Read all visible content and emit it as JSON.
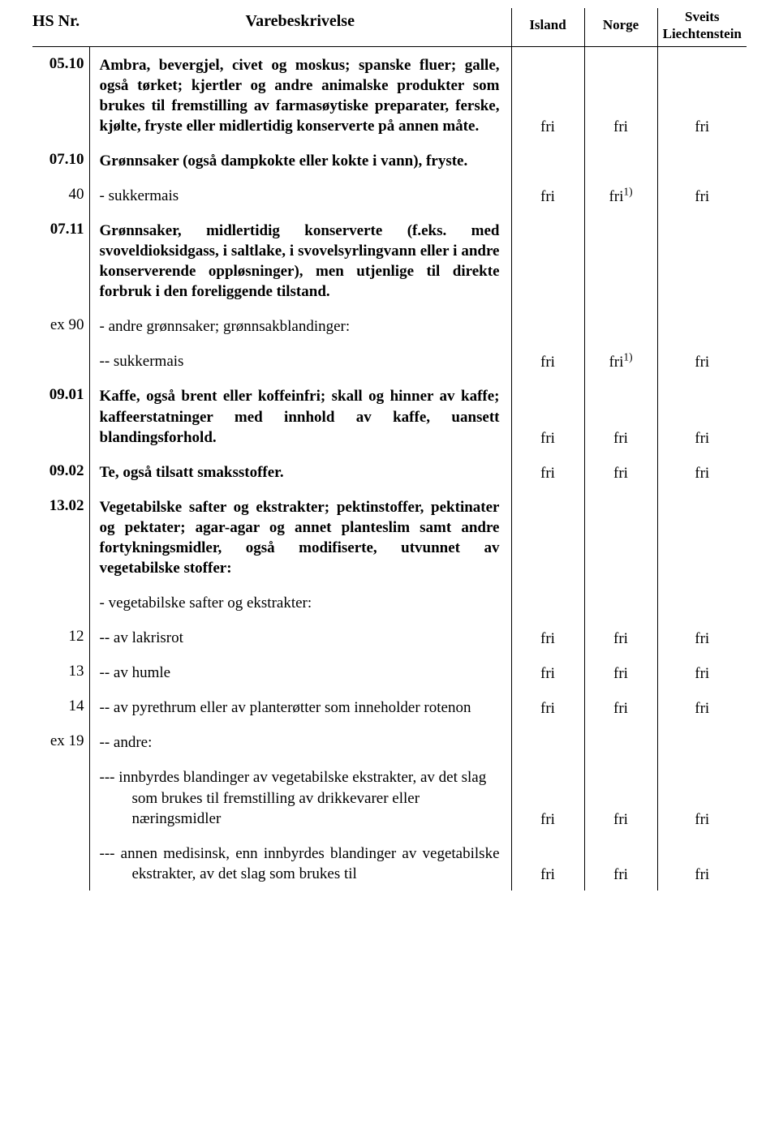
{
  "header": {
    "hs": "HS Nr.",
    "desc": "Varebeskrivelse",
    "iceland": "Island",
    "norway": "Norge",
    "swiss_line1": "Sveits",
    "swiss_line2": "Liechtenstein"
  },
  "free": "fri",
  "free_sup": "1)",
  "rows": {
    "r0510": {
      "hs": "05.10",
      "desc": "Ambra, bevergjel, civet og moskus; spanske fluer; galle, også tørket; kjertler og andre animalske produkter som brukes til fremstilling av farmasøytiske preparater, ferske, kjølte, fryste eller midlertidig konserverte på annen måte."
    },
    "r0710": {
      "hs": "07.10",
      "desc": "Grønnsaker (også dampkokte eller kokte i vann), fryste."
    },
    "r40": {
      "hs": "40",
      "desc": "- sukkermais"
    },
    "r0711": {
      "hs": "07.11",
      "desc": "Grønnsaker, midlertidig konserverte (f.eks. med svoveldioksidgass, i saltlake, i svovelsyrlingvann eller i andre konserverende oppløsninger), men utjenlige til direkte forbruk i den foreliggende tilstand."
    },
    "rex90": {
      "hs": "ex 90",
      "desc": "- andre grønnsaker; grønnsakblandinger:"
    },
    "rsuk2": {
      "desc": "-- sukkermais"
    },
    "r0901": {
      "hs": "09.01",
      "desc": "Kaffe, også brent eller koffeinfri; skall og hinner av kaffe; kaffeerstatninger med innhold av kaffe, uansett blandingsforhold."
    },
    "r0902": {
      "hs": "09.02",
      "desc": "Te, også tilsatt smaksstoffer."
    },
    "r1302": {
      "hs": "13.02",
      "desc": "Vegetabilske safter og ekstrakter; pektinstoffer, pektinater og pektater; agar-agar og annet planteslim samt andre fortykningsmidler, også modifiserte, utvunnet av vegetabilske stoffer:"
    },
    "rveg": {
      "desc": "- vegetabilske safter og ekstrakter:"
    },
    "r12": {
      "hs": "12",
      "desc": "-- av lakrisrot"
    },
    "r13": {
      "hs": "13",
      "desc": "-- av humle"
    },
    "r14": {
      "hs": "14",
      "desc": "-- av pyrethrum eller av planterøtter som inneholder rotenon"
    },
    "rex19": {
      "hs": "ex 19",
      "desc": "-- andre:"
    },
    "rinnb": {
      "desc": "--- innbyrdes blandinger av vegetabilske ekstrakter, av det slag som brukes til fremstilling av drikkevarer eller næringsmidler"
    },
    "rannen": {
      "desc": "--- annen medisinsk, enn innbyrdes blandinger av vegetabilske ekstrakter, av det slag som brukes til"
    }
  }
}
